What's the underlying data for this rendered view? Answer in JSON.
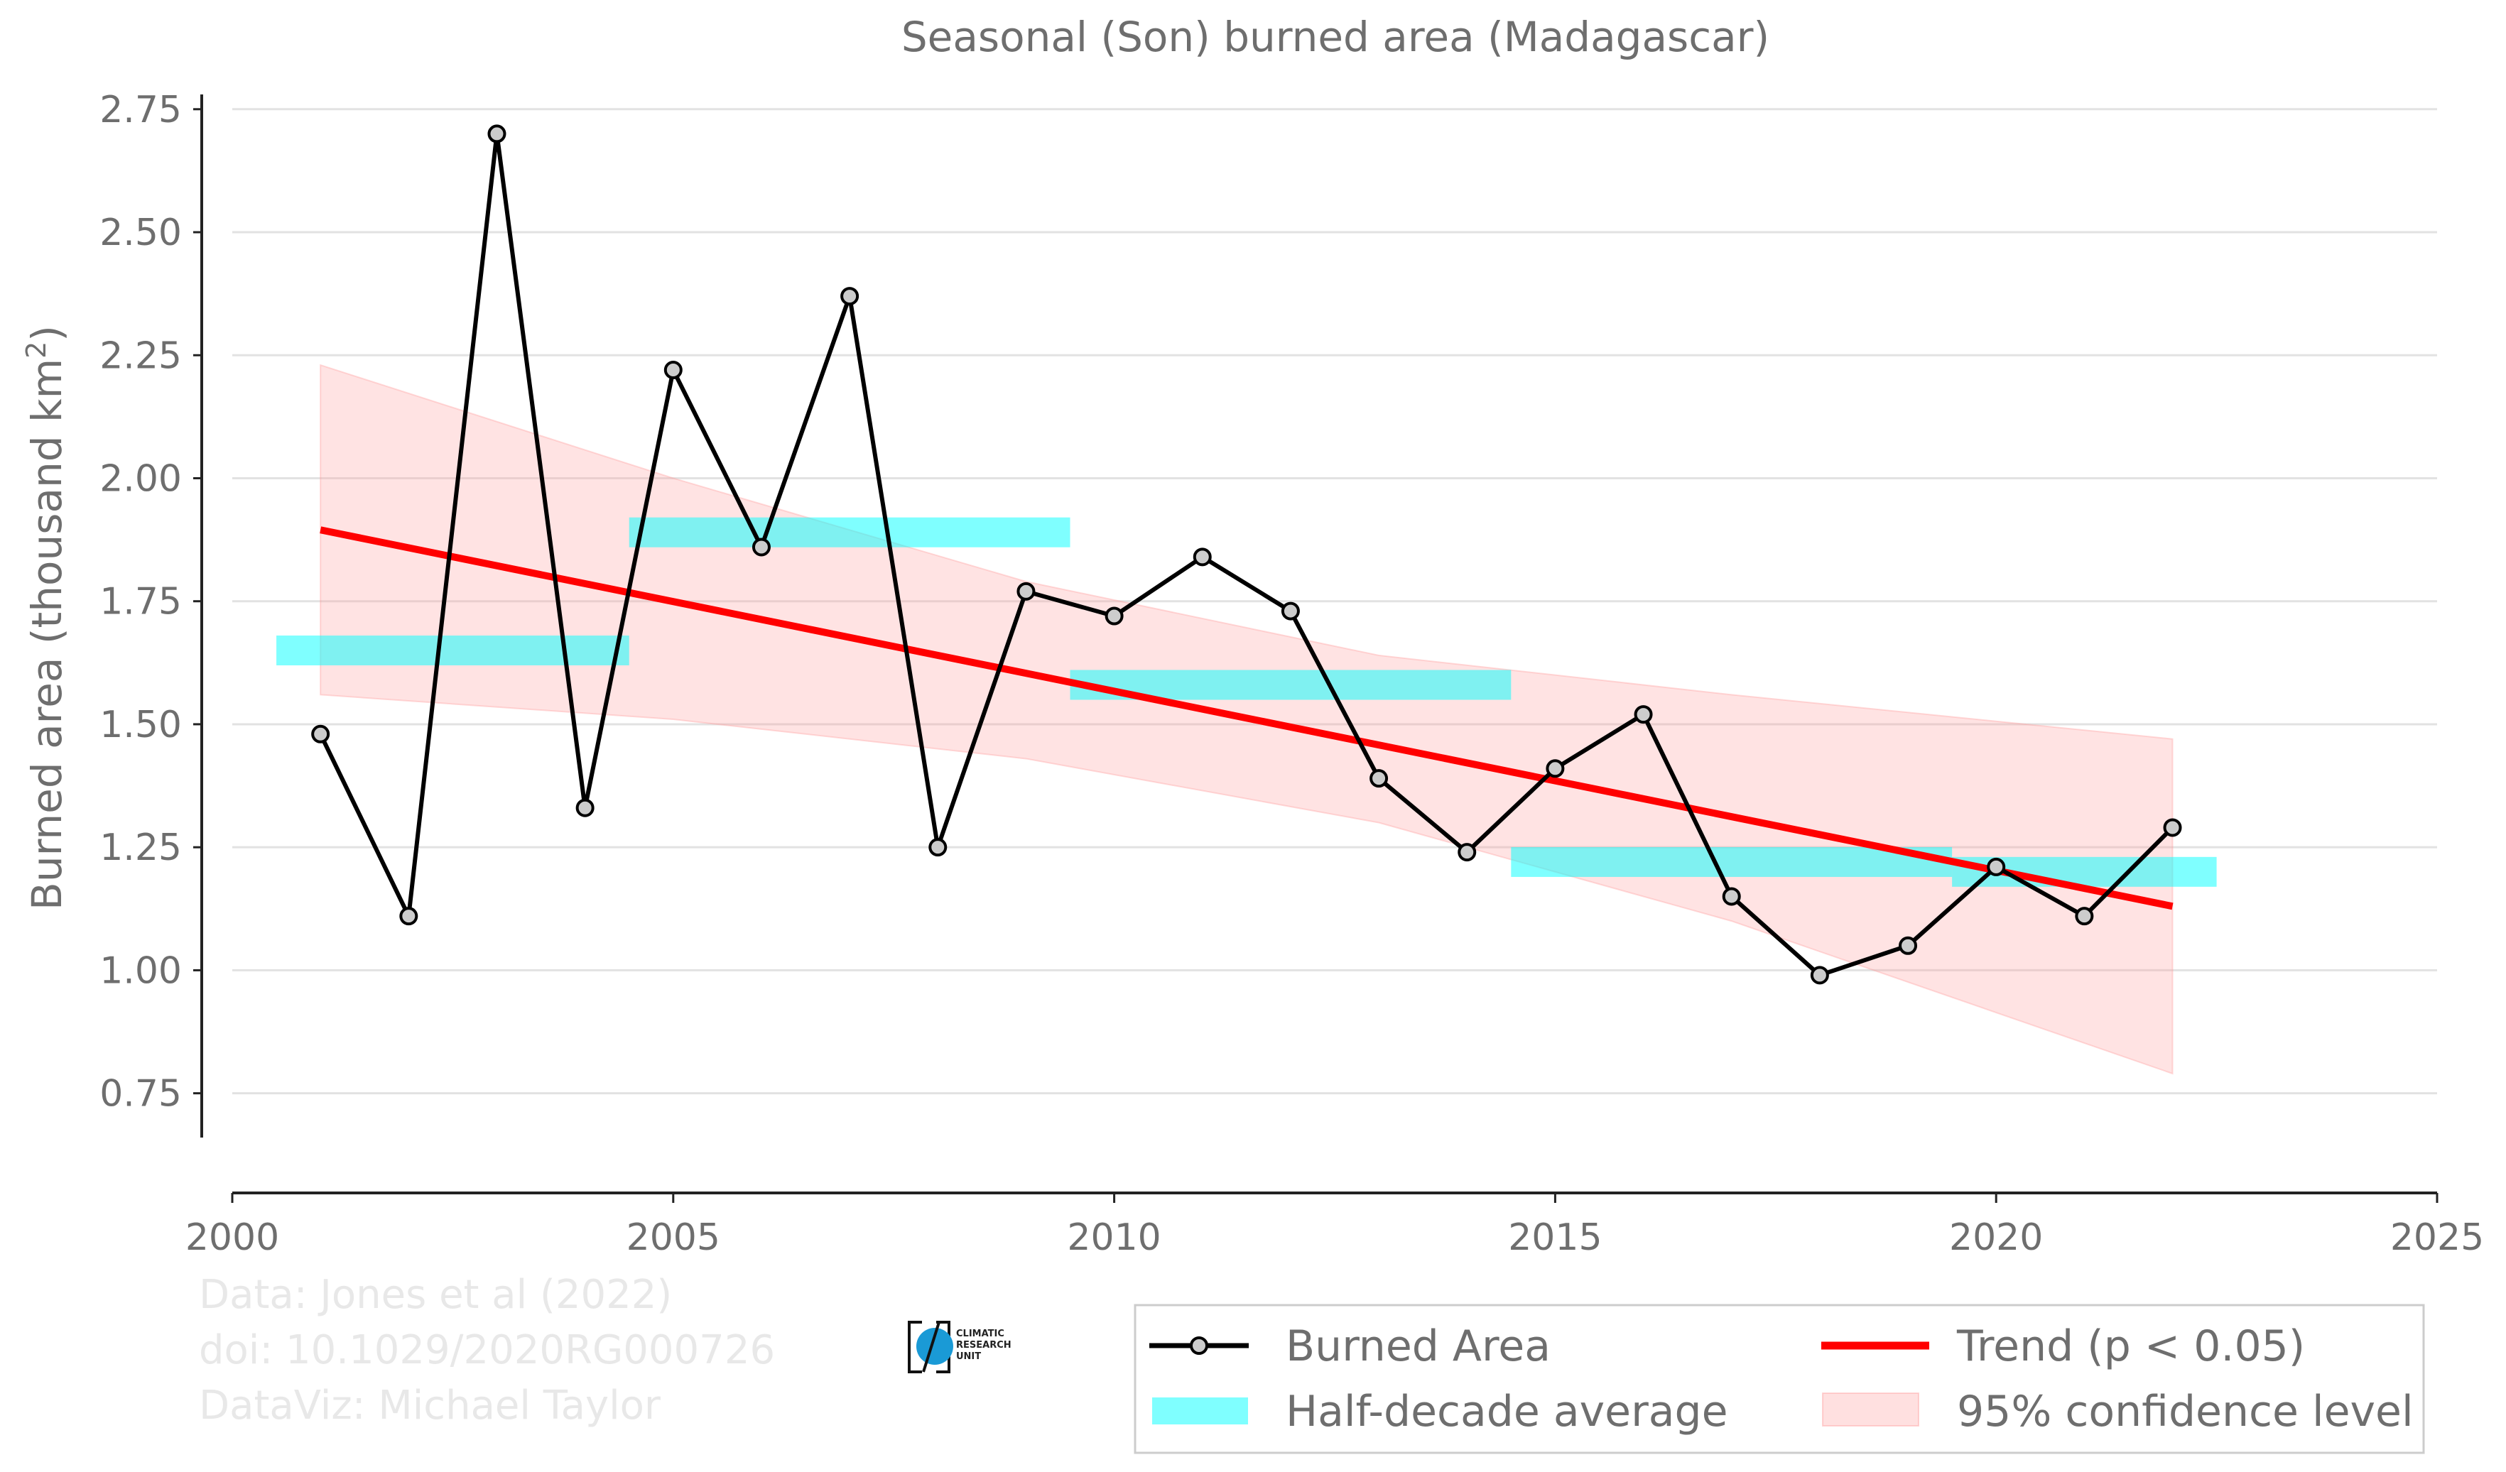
{
  "chart_data": {
    "type": "line",
    "title": "Seasonal (Son) burned area (Madagascar)",
    "xlabel": "",
    "ylabel": "Burned area (thousand km",
    "ylabel_sup": "2",
    "ylabel_close": ")",
    "xlim": [
      2000,
      2025
    ],
    "ylim": [
      0.66,
      2.78
    ],
    "xticks": [
      2000,
      2005,
      2010,
      2015,
      2020,
      2025
    ],
    "yticks": [
      "0.75",
      "1.00",
      "1.25",
      "1.50",
      "1.75",
      "2.00",
      "2.25",
      "2.50",
      "2.75"
    ],
    "grid": "horizontal",
    "legend_position": "bottom-right",
    "series": [
      {
        "name": "Burned Area",
        "color": "#000000",
        "marker_fill": "#cccccc",
        "x": [
          2001,
          2002,
          2003,
          2004,
          2005,
          2006,
          2007,
          2008,
          2009,
          2010,
          2011,
          2012,
          2013,
          2014,
          2015,
          2016,
          2017,
          2018,
          2019,
          2020,
          2021,
          2022
        ],
        "y": [
          1.48,
          1.11,
          2.7,
          1.33,
          2.22,
          1.86,
          2.37,
          1.25,
          1.77,
          1.72,
          1.84,
          1.73,
          1.39,
          1.24,
          1.41,
          1.52,
          1.15,
          0.99,
          1.05,
          1.21,
          1.11,
          1.29
        ]
      }
    ],
    "half_decade_average": {
      "name": "Half-decade average",
      "color": "#00ffff",
      "segments": [
        {
          "x0": 2000.5,
          "x1": 2004.5,
          "y": 1.65
        },
        {
          "x0": 2004.5,
          "x1": 2009.5,
          "y": 1.89
        },
        {
          "x0": 2009.5,
          "x1": 2014.5,
          "y": 1.58
        },
        {
          "x0": 2014.5,
          "x1": 2019.5,
          "y": 1.22
        },
        {
          "x0": 2019.5,
          "x1": 2022.5,
          "y": 1.2
        }
      ]
    },
    "trend": {
      "name": "Trend (p < 0.05)",
      "color": "#ff0000",
      "x": [
        2001,
        2022
      ],
      "y": [
        1.895,
        1.13
      ]
    },
    "confidence": {
      "name": "95% confidence level",
      "color": "#ff9999",
      "x": [
        2001,
        2005,
        2009,
        2013,
        2017,
        2022
      ],
      "upper": [
        2.23,
        2.0,
        1.79,
        1.64,
        1.56,
        1.47
      ],
      "lower": [
        1.56,
        1.51,
        1.43,
        1.3,
        1.1,
        0.79
      ]
    }
  },
  "credits": {
    "line1": "Data: Jones et al (2022)",
    "line2": "doi: 10.1029/2020RG000726",
    "line3": "DataViz: Michael Taylor"
  },
  "logo": {
    "line1": "CLIMATIC",
    "line2": "RESEARCH",
    "line3": "UNIT"
  },
  "legend": {
    "burned_area": "Burned Area",
    "half_decade": "Half-decade average",
    "trend": "Trend (p < 0.05)",
    "confidence": "95% confidence level"
  }
}
